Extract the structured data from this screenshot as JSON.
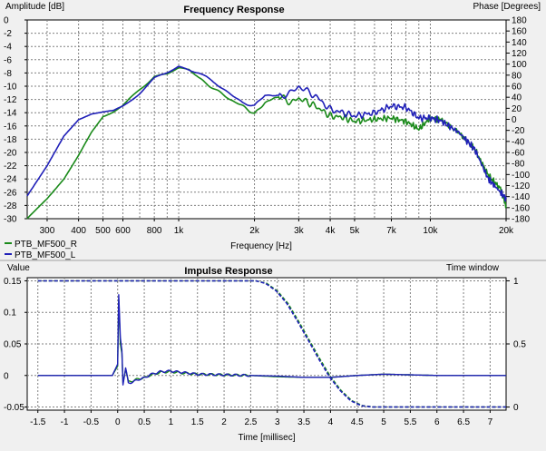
{
  "chart_data": [
    {
      "type": "line",
      "title": "Frequency Response",
      "xlabel": "Frequency [Hz]",
      "ylabel": "Amplitude [dB]",
      "y2label": "Phase [Degrees]",
      "x_scale": "log",
      "xlim": [
        250,
        20000
      ],
      "ylim": [
        -30,
        0
      ],
      "y2lim": [
        -180,
        180
      ],
      "grid": true,
      "legend_position": "bottom-left",
      "x_ticks": [
        {
          "v": 300,
          "label": "300"
        },
        {
          "v": 400,
          "label": "400"
        },
        {
          "v": 500,
          "label": "500"
        },
        {
          "v": 600,
          "label": "600"
        },
        {
          "v": 800,
          "label": "800"
        },
        {
          "v": 1000,
          "label": "1k"
        },
        {
          "v": 2000,
          "label": "2k"
        },
        {
          "v": 3000,
          "label": "3k"
        },
        {
          "v": 4000,
          "label": "4k"
        },
        {
          "v": 5000,
          "label": "5k"
        },
        {
          "v": 7000,
          "label": "7k"
        },
        {
          "v": 10000,
          "label": "10k"
        },
        {
          "v": 20000,
          "label": "20k"
        }
      ],
      "y_ticks": [
        "0",
        "-2",
        "-4",
        "-6",
        "-8",
        "-10",
        "-12",
        "-14",
        "-16",
        "-18",
        "-20",
        "-22",
        "-24",
        "-26",
        "-28",
        "-30"
      ],
      "y2_ticks": [
        "180",
        "160",
        "140",
        "120",
        "100",
        "80",
        "60",
        "40",
        "20",
        "0",
        "-20",
        "-40",
        "-60",
        "-80",
        "-100",
        "-120",
        "-140",
        "-160",
        "-180"
      ],
      "series": [
        {
          "name": "PTB_MF500_R",
          "color": "#1a8a1a",
          "x": [
            250,
            300,
            350,
            400,
            450,
            500,
            550,
            600,
            700,
            800,
            900,
            1000,
            1100,
            1200,
            1400,
            1600,
            1800,
            2000,
            2200,
            2500,
            2800,
            3000,
            3500,
            4000,
            4500,
            5000,
            6000,
            7000,
            8000,
            9000,
            10000,
            11000,
            13000,
            15000,
            17000,
            19000,
            20000
          ],
          "y": [
            -30,
            -27,
            -24,
            -20.5,
            -17,
            -14.5,
            -13.8,
            -13,
            -10.5,
            -8.5,
            -8.2,
            -7.2,
            -7.4,
            -8.8,
            -10.5,
            -12,
            -13,
            -14.2,
            -12.5,
            -11.5,
            -12.5,
            -11.8,
            -13,
            -14.5,
            -14.7,
            -15.3,
            -15,
            -14.8,
            -15.3,
            -16.5,
            -14.8,
            -15,
            -17,
            -19.5,
            -23.5,
            -25.5,
            -28
          ]
        },
        {
          "name": "PTB_MF500_L",
          "color": "#2020b8",
          "x": [
            250,
            300,
            350,
            400,
            450,
            500,
            550,
            600,
            700,
            800,
            900,
            1000,
            1100,
            1200,
            1400,
            1600,
            1800,
            2000,
            2200,
            2500,
            2800,
            3000,
            3500,
            4000,
            4500,
            5000,
            6000,
            7000,
            8000,
            9000,
            10000,
            11000,
            13000,
            15000,
            17000,
            19000,
            20000
          ],
          "y": [
            -26.5,
            -22,
            -17.5,
            -15,
            -14.2,
            -14,
            -13.8,
            -13,
            -11,
            -8.8,
            -8,
            -7,
            -7.5,
            -8,
            -9.5,
            -11.2,
            -12.5,
            -13,
            -11.3,
            -11.5,
            -11,
            -10,
            -11.5,
            -13.5,
            -14,
            -14.5,
            -14,
            -13,
            -13.2,
            -14.8,
            -14.8,
            -15.2,
            -17,
            -19.5,
            -24,
            -26,
            -27
          ]
        }
      ]
    },
    {
      "type": "line",
      "title": "Impulse Response",
      "xlabel": "Time [millisec]",
      "ylabel": "Value",
      "y2label": "Time window",
      "xlim": [
        -1.7,
        7.3
      ],
      "ylim": [
        -0.055,
        0.155
      ],
      "y2lim": [
        0,
        1
      ],
      "grid": true,
      "x_ticks": [
        "-1.5",
        "-1",
        "-0.5",
        "0",
        "0.5",
        "1",
        "1.5",
        "2",
        "2.5",
        "3",
        "3.5",
        "4",
        "4.5",
        "5",
        "5.5",
        "6",
        "6.5",
        "7"
      ],
      "y_ticks": [
        {
          "v": 0.15,
          "label": "0.15"
        },
        {
          "v": 0.1,
          "label": "0.1"
        },
        {
          "v": 0.05,
          "label": "0.05"
        },
        {
          "v": 0,
          "label": "0"
        },
        {
          "v": -0.05,
          "label": "-0.05"
        }
      ],
      "y2_ticks": [
        {
          "v": 1,
          "label": "1"
        },
        {
          "v": 0.5,
          "label": "0.5"
        },
        {
          "v": 0,
          "label": "0"
        }
      ],
      "series": [
        {
          "name": "PTB_MF500_R",
          "color": "#1a8a1a",
          "x": [
            -1.5,
            -0.1,
            0,
            0.02,
            0.05,
            0.08,
            0.1,
            0.15,
            0.2,
            0.3,
            0.4,
            0.5,
            0.6,
            0.8,
            1.0,
            1.2,
            1.5,
            2.0,
            2.5,
            3.0,
            3.5,
            4.0,
            4.5,
            5.0,
            6.0,
            7.0,
            7.3
          ],
          "y": [
            0,
            0,
            0.015,
            0.12,
            0.05,
            0.035,
            -0.012,
            0.01,
            -0.01,
            -0.008,
            -0.005,
            -0.004,
            0.0,
            0.005,
            0.006,
            0.004,
            0.002,
            0.001,
            0.0,
            -0.002,
            -0.003,
            -0.003,
            0.0,
            0.002,
            0.0,
            0.0,
            0.0
          ]
        },
        {
          "name": "PTB_MF500_L",
          "color": "#2020b8",
          "x": [
            -1.5,
            -0.1,
            0,
            0.02,
            0.05,
            0.08,
            0.1,
            0.15,
            0.2,
            0.3,
            0.4,
            0.5,
            0.6,
            0.8,
            1.0,
            1.2,
            1.5,
            2.0,
            2.5,
            3.0,
            3.5,
            4.0,
            4.5,
            5.0,
            6.0,
            7.0,
            7.3
          ],
          "y": [
            0,
            0,
            0.018,
            0.128,
            0.06,
            0.04,
            -0.015,
            0.012,
            -0.012,
            -0.01,
            -0.006,
            -0.004,
            0.001,
            0.006,
            0.007,
            0.005,
            0.002,
            0.001,
            0.0,
            -0.001,
            -0.003,
            -0.003,
            0.0,
            0.002,
            0.0,
            0.0,
            0.0
          ]
        }
      ],
      "windows": [
        {
          "color": "#1a8a1a",
          "x": [
            -1.5,
            2.6,
            2.8,
            3.0,
            3.2,
            3.4,
            3.6,
            3.8,
            4.0,
            4.2,
            4.4,
            4.6,
            4.8,
            7.3
          ],
          "y": [
            1,
            1,
            0.98,
            0.92,
            0.82,
            0.68,
            0.53,
            0.38,
            0.24,
            0.13,
            0.05,
            0.01,
            0,
            0
          ]
        },
        {
          "color": "#2020b8",
          "x": [
            -1.5,
            2.6,
            2.78,
            2.98,
            3.18,
            3.38,
            3.58,
            3.78,
            3.98,
            4.18,
            4.38,
            4.58,
            4.78,
            7.3
          ],
          "y": [
            1,
            1,
            0.98,
            0.92,
            0.82,
            0.68,
            0.53,
            0.38,
            0.24,
            0.13,
            0.05,
            0.01,
            0,
            0
          ]
        }
      ]
    }
  ]
}
